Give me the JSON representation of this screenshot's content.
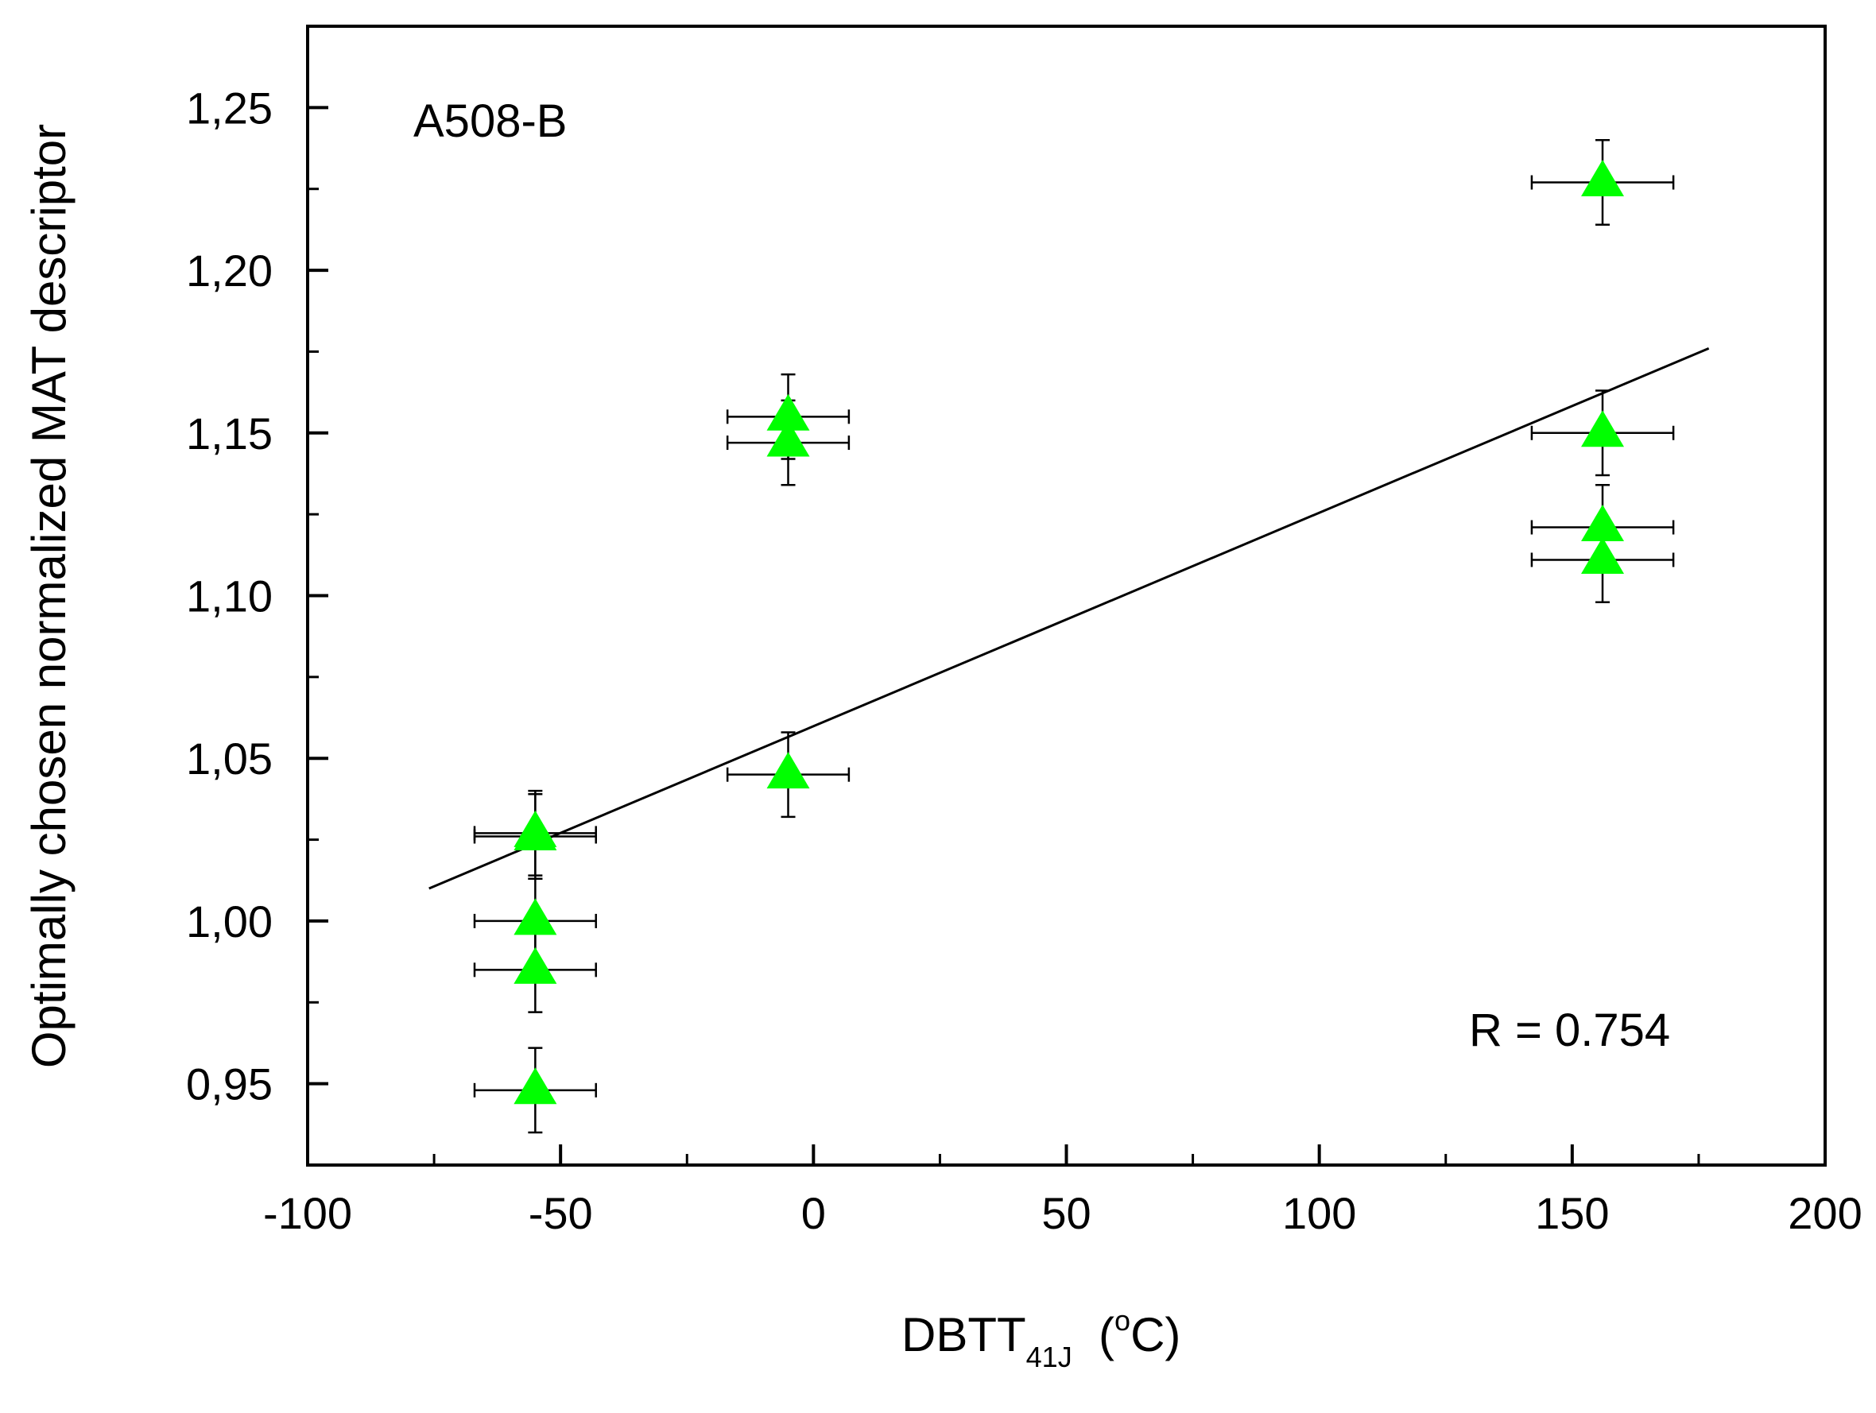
{
  "chart_data": {
    "type": "scatter",
    "title": "",
    "xlabel": {
      "main": "DBTT",
      "subscript": "41J",
      "unit_open": "  (",
      "unit_sup": "o",
      "unit_rest": "C)"
    },
    "ylabel": "Optimally chosen normalized MAT descriptor",
    "xlim": [
      -100,
      200
    ],
    "ylim": [
      0.925,
      1.275
    ],
    "x_ticks": [
      -100,
      -50,
      0,
      50,
      100,
      150,
      200
    ],
    "x_tick_labels": [
      "-100",
      "-50",
      "0",
      "50",
      "100",
      "150",
      "200"
    ],
    "x_minor_step": 25,
    "y_ticks": [
      0.95,
      1.0,
      1.05,
      1.1,
      1.15,
      1.2,
      1.25
    ],
    "y_tick_labels": [
      "0,95",
      "1,00",
      "1,05",
      "1,10",
      "1,15",
      "1,20",
      "1,25"
    ],
    "y_minor_step": 0.025,
    "grid": false,
    "annotations": {
      "material": "A508-B",
      "correlation": "R = 0.754"
    },
    "marker_color": "#00ff00",
    "series": [
      {
        "name": "A508-B",
        "points": [
          {
            "x": -55,
            "y": 1.027,
            "xerr": 12,
            "yerr": 0.013
          },
          {
            "x": -55,
            "y": 1.026,
            "xerr": 12,
            "yerr": 0.013
          },
          {
            "x": -55,
            "y": 1.0,
            "xerr": 12,
            "yerr": 0.013
          },
          {
            "x": -55,
            "y": 0.985,
            "xerr": 12,
            "yerr": 0.013
          },
          {
            "x": -55,
            "y": 0.948,
            "xerr": 12,
            "yerr": 0.013
          },
          {
            "x": -5,
            "y": 1.155,
            "xerr": 12,
            "yerr": 0.013
          },
          {
            "x": -5,
            "y": 1.147,
            "xerr": 12,
            "yerr": 0.013
          },
          {
            "x": -5,
            "y": 1.045,
            "xerr": 12,
            "yerr": 0.013
          },
          {
            "x": 156,
            "y": 1.227,
            "xerr": 14,
            "yerr": 0.013
          },
          {
            "x": 156,
            "y": 1.15,
            "xerr": 14,
            "yerr": 0.013
          },
          {
            "x": 156,
            "y": 1.121,
            "xerr": 14,
            "yerr": 0.013
          },
          {
            "x": 156,
            "y": 1.111,
            "xerr": 14,
            "yerr": 0.013
          }
        ]
      }
    ],
    "fit_line": {
      "x": [
        -76,
        177
      ],
      "y": [
        1.01,
        1.176
      ]
    }
  }
}
